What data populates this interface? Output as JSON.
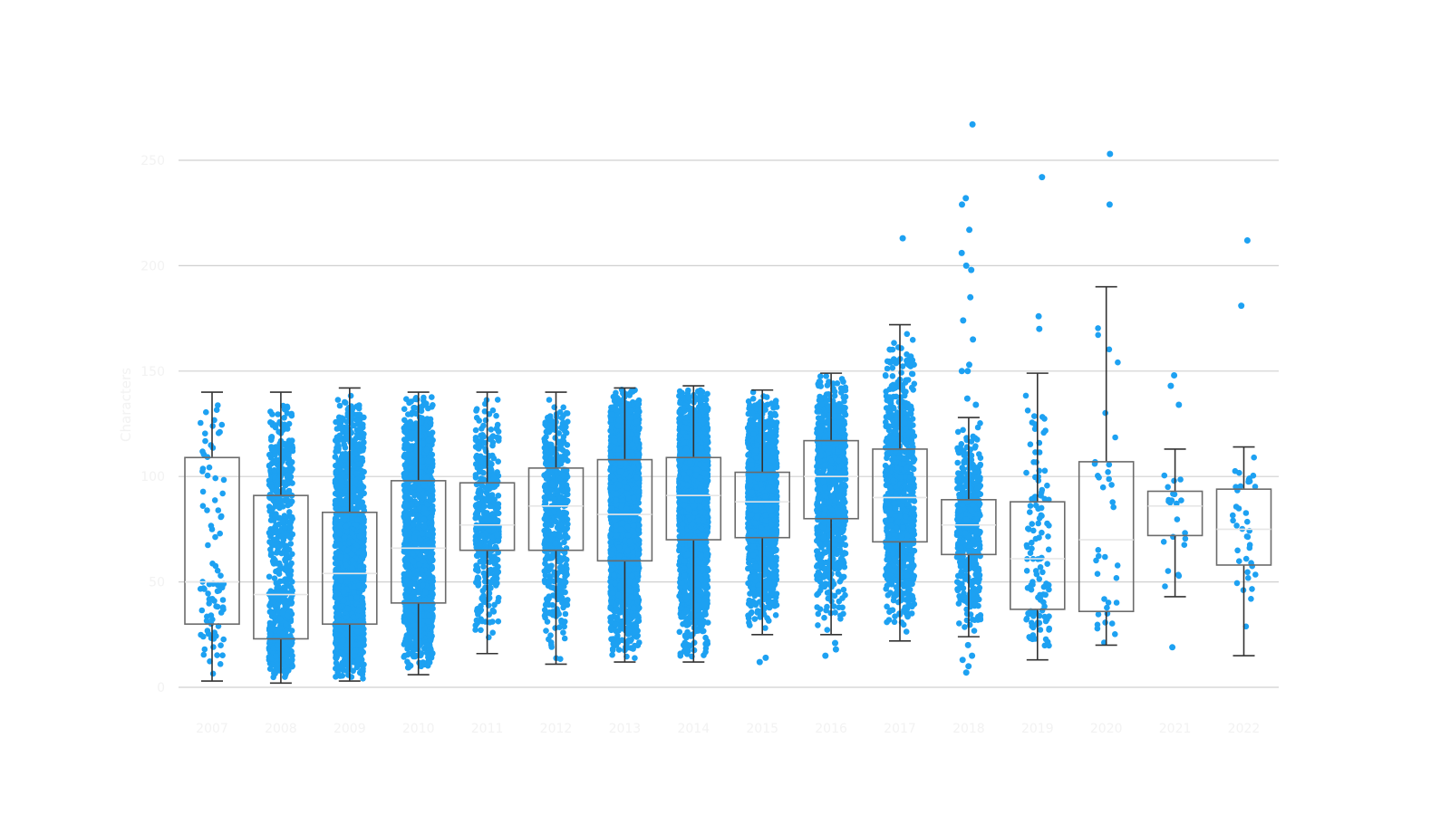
{
  "chart_data": {
    "type": "boxplot",
    "title": "",
    "xlabel": "",
    "ylabel": "Characters",
    "ylim": [
      0,
      270
    ],
    "y_ticks": [
      0,
      50,
      100,
      150,
      200,
      250
    ],
    "grid": true,
    "colors": {
      "points": "#1da1f2",
      "box_stroke": "#6b6b6b",
      "whisker": "#333333",
      "median": "#e6e6e6",
      "gridline": "#d0d0d0",
      "tick_text": "#f2f2f2"
    },
    "categories": [
      "2007",
      "2008",
      "2009",
      "2010",
      "2011",
      "2012",
      "2013",
      "2014",
      "2015",
      "2016",
      "2017",
      "2018",
      "2019",
      "2020",
      "2021",
      "2022"
    ],
    "boxes": [
      {
        "year": "2007",
        "whisker_low": 3,
        "q1": 30,
        "median": 50,
        "q3": 109,
        "whisker_high": 140,
        "n_points": 90,
        "outliers": []
      },
      {
        "year": "2008",
        "whisker_low": 2,
        "q1": 23,
        "median": 44,
        "q3": 91,
        "whisker_high": 140,
        "n_points": 700,
        "outliers": []
      },
      {
        "year": "2009",
        "whisker_low": 3,
        "q1": 30,
        "median": 54,
        "q3": 83,
        "whisker_high": 142,
        "n_points": 1500,
        "outliers": []
      },
      {
        "year": "2010",
        "whisker_low": 6,
        "q1": 40,
        "median": 66,
        "q3": 98,
        "whisker_high": 140,
        "n_points": 1300,
        "outliers": []
      },
      {
        "year": "2011",
        "whisker_low": 16,
        "q1": 65,
        "median": 77,
        "q3": 97,
        "whisker_high": 140,
        "n_points": 450,
        "outliers": []
      },
      {
        "year": "2012",
        "whisker_low": 11,
        "q1": 65,
        "median": 86,
        "q3": 104,
        "whisker_high": 140,
        "n_points": 500,
        "outliers": []
      },
      {
        "year": "2013",
        "whisker_low": 12,
        "q1": 60,
        "median": 82,
        "q3": 108,
        "whisker_high": 142,
        "n_points": 2000,
        "outliers": []
      },
      {
        "year": "2014",
        "whisker_low": 12,
        "q1": 70,
        "median": 91,
        "q3": 109,
        "whisker_high": 143,
        "n_points": 2000,
        "outliers": []
      },
      {
        "year": "2015",
        "whisker_low": 25,
        "q1": 71,
        "median": 88,
        "q3": 102,
        "whisker_high": 141,
        "n_points": 1400,
        "outliers": [
          14,
          12
        ]
      },
      {
        "year": "2016",
        "whisker_low": 25,
        "q1": 80,
        "median": 100,
        "q3": 117,
        "whisker_high": 149,
        "n_points": 900,
        "outliers": [
          15,
          18,
          21
        ]
      },
      {
        "year": "2017",
        "whisker_low": 22,
        "q1": 69,
        "median": 90,
        "q3": 113,
        "whisker_high": 172,
        "n_points": 900,
        "outliers": [
          213
        ]
      },
      {
        "year": "2018",
        "whisker_low": 24,
        "q1": 63,
        "median": 77,
        "q3": 89,
        "whisker_high": 128,
        "n_points": 500,
        "outliers": [
          267,
          232,
          229,
          217,
          206,
          200,
          198,
          185,
          174,
          165,
          153,
          150,
          150,
          137,
          134,
          10,
          7,
          15,
          13,
          20
        ]
      },
      {
        "year": "2019",
        "whisker_low": 13,
        "q1": 37,
        "median": 61,
        "q3": 88,
        "whisker_high": 149,
        "n_points": 120,
        "outliers": [
          242,
          176,
          170
        ]
      },
      {
        "year": "2020",
        "whisker_low": 20,
        "q1": 36,
        "median": 70,
        "q3": 107,
        "whisker_high": 190,
        "n_points": 36,
        "outliers": [
          253,
          229
        ]
      },
      {
        "year": "2021",
        "whisker_low": 43,
        "q1": 72,
        "median": 86,
        "q3": 93,
        "whisker_high": 113,
        "n_points": 22,
        "outliers": [
          148,
          143,
          134,
          19
        ]
      },
      {
        "year": "2022",
        "whisker_low": 15,
        "q1": 58,
        "median": 75,
        "q3": 94,
        "whisker_high": 114,
        "n_points": 40,
        "outliers": [
          212,
          181
        ]
      }
    ]
  }
}
